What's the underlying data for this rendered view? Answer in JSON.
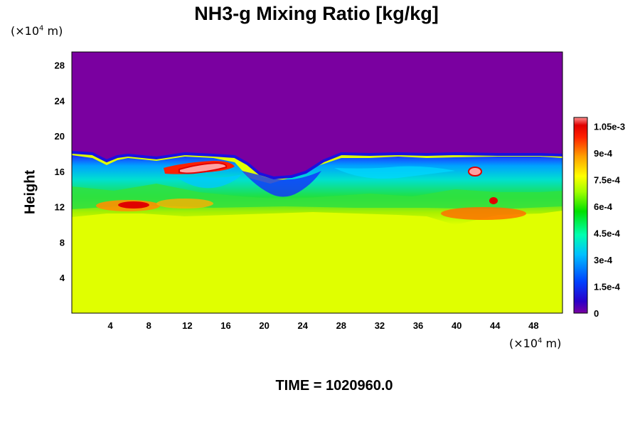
{
  "chart_data": {
    "type": "heatmap",
    "title": "NH3-g Mixing Ratio [kg/kg]",
    "ylabel": "Height",
    "y_unit": {
      "prefix": "(×10",
      "exp": "4",
      "suffix": " m)"
    },
    "x_unit": {
      "prefix": "(×10",
      "exp": "4",
      "suffix": " m)"
    },
    "xlim": [
      0,
      51
    ],
    "ylim": [
      0,
      29.5
    ],
    "x_ticks": [
      "4",
      "8",
      "12",
      "16",
      "20",
      "24",
      "28",
      "32",
      "36",
      "40",
      "44",
      "48"
    ],
    "y_ticks": [
      "4",
      "8",
      "12",
      "16",
      "20",
      "24",
      "28"
    ],
    "colorbar": {
      "range": [
        0,
        0.0011
      ],
      "ticks": [
        "0",
        "1.5e-4",
        "3e-4",
        "4.5e-4",
        "6e-4",
        "7.5e-4",
        "9e-4",
        "1.05e-3"
      ],
      "tick_values": [
        0,
        0.00015,
        0.0003,
        0.00045,
        0.0006,
        0.00075,
        0.0009,
        0.00105
      ]
    },
    "regions": {
      "upper": {
        "y_from": 18,
        "y_to": 29.5,
        "value": 0
      },
      "lower": {
        "y_from": 0,
        "y_to": 11,
        "value": 0.00078
      },
      "turbulent_layer": {
        "y_from": 11,
        "y_to": 18,
        "value_range": [
          0,
          0.0011
        ]
      }
    },
    "time": "TIME = 1020960.0"
  }
}
